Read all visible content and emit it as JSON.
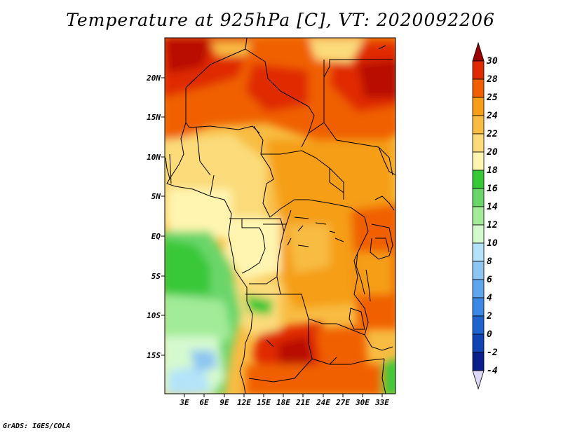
{
  "title": "Temperature at 925hPa [C], VT: 2020092206",
  "credit": "GrADS: IGES/COLA",
  "lat_labels": [
    "20N",
    "15N",
    "10N",
    "5N",
    "EQ",
    "5S",
    "10S",
    "15S"
  ],
  "lon_labels": [
    "3E",
    "6E",
    "9E",
    "12E",
    "15E",
    "18E",
    "21E",
    "24E",
    "27E",
    "30E",
    "33E"
  ],
  "colorbar": {
    "levels": [
      "30",
      "28",
      "25",
      "24",
      "22",
      "20",
      "18",
      "16",
      "14",
      "12",
      "10",
      "8",
      "6",
      "4",
      "2",
      "0",
      "-2",
      "-4"
    ],
    "colors": [
      "#9a0000",
      "#e02a00",
      "#f06000",
      "#f59e17",
      "#f8bc43",
      "#fbdb7a",
      "#fff5b0",
      "#37c838",
      "#6ad66a",
      "#a2eb98",
      "#d5f9cf",
      "#b3e3f9",
      "#8dc6f2",
      "#5ea6ed",
      "#3c88e6",
      "#1f63d1",
      "#1043b3",
      "#0a1f8a",
      "#0a0a5a",
      "#dcd8f5"
    ]
  },
  "map": {
    "lat_range": [
      -19,
      25
    ],
    "lon_range": [
      0,
      35
    ],
    "region": "Central Africa"
  }
}
